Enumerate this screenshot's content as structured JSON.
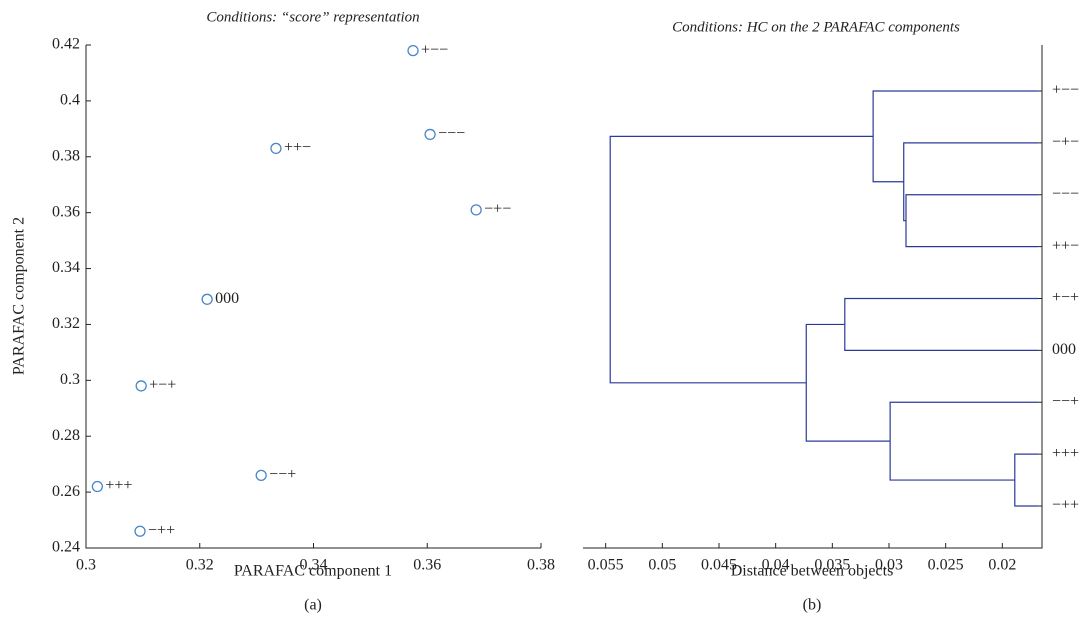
{
  "chart_data": [
    {
      "type": "scatter",
      "title": "Conditions: “score” representation",
      "caption": "(a)",
      "xlabel": "PARAFAC component 1",
      "ylabel": "PARAFAC component 2",
      "labels": [
        "+−−",
        "−−−",
        "++−",
        "−+−",
        "000",
        "+−+",
        "−−+",
        "+++",
        "−++"
      ],
      "x": [
        0.3575,
        0.3605,
        0.3334,
        0.3686,
        0.3213,
        0.3097,
        0.3308,
        0.302,
        0.3095
      ],
      "y": [
        0.418,
        0.388,
        0.383,
        0.361,
        0.329,
        0.298,
        0.266,
        0.262,
        0.246
      ],
      "color": "#4a86c8",
      "xlim": [
        0.3,
        0.38
      ],
      "xticks": [
        0.3,
        0.32,
        0.34,
        0.36,
        0.38
      ],
      "ylim": [
        0.24,
        0.42
      ],
      "yticks": [
        0.24,
        0.26,
        0.28,
        0.3,
        0.32,
        0.34,
        0.36,
        0.38,
        0.4,
        0.42
      ]
    },
    {
      "type": "dendrogram",
      "title": "Conditions: HC on the 2 PARAFAC components",
      "caption": "(b)",
      "xlabel": "Distance between objects",
      "leaves": [
        "+−−",
        "−+−",
        "−−−",
        "++−",
        "+−+",
        "000",
        "−−+",
        "+++",
        "−++"
      ],
      "merges": [
        {
          "left": 2,
          "right": 3,
          "height": 0.0285
        },
        {
          "left": 1,
          "right": 9,
          "height": 0.0287
        },
        {
          "left": 0,
          "right": 10,
          "height": 0.0314
        },
        {
          "left": 4,
          "right": 5,
          "height": 0.0339
        },
        {
          "left": 7,
          "right": 8,
          "height": 0.0189
        },
        {
          "left": 6,
          "right": 13,
          "height": 0.0299
        },
        {
          "left": 12,
          "right": 14,
          "height": 0.0373
        },
        {
          "left": 11,
          "right": 15,
          "height": 0.0546
        }
      ],
      "color": "#2b3a9a",
      "xlim": [
        0.057,
        0.0165
      ],
      "xticks": [
        0.055,
        0.05,
        0.045,
        0.04,
        0.035,
        0.03,
        0.025,
        0.02
      ]
    }
  ]
}
